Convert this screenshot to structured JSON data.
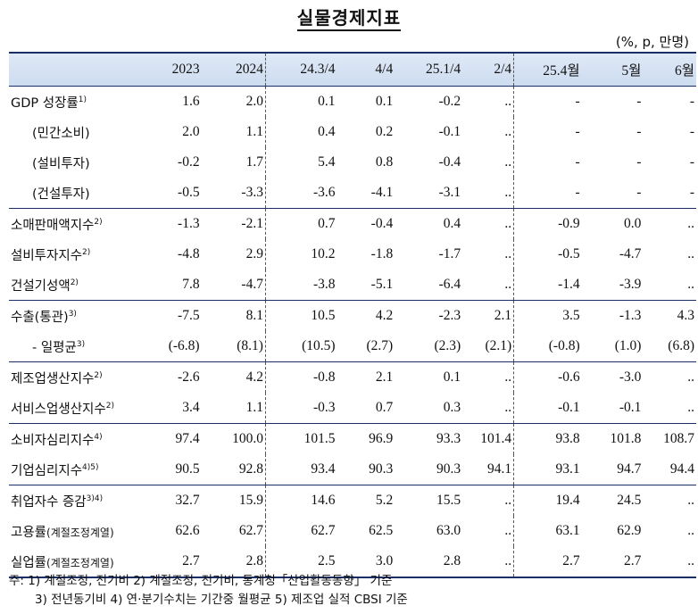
{
  "title": "실물경제지표",
  "unit": "(%, p, 만명)",
  "columns": [
    "2023",
    "2024",
    "24.3/4",
    "4/4",
    "25.1/4",
    "2/4",
    "25.4월",
    "5월",
    "6월"
  ],
  "rows": [
    {
      "label": "GDP 성장률",
      "sup": "1)",
      "values": [
        "1.6",
        "2.0",
        "0.1",
        "0.1",
        "-0.2",
        "..",
        "-",
        "-",
        "-"
      ]
    },
    {
      "label": "(민간소비)",
      "sup": "",
      "values": [
        "2.0",
        "1.1",
        "0.4",
        "0.2",
        "-0.1",
        "..",
        "-",
        "-",
        "-"
      ]
    },
    {
      "label": "(설비투자)",
      "sup": "",
      "values": [
        "-0.2",
        "1.7",
        "5.4",
        "0.8",
        "-0.4",
        "..",
        "-",
        "-",
        "-"
      ]
    },
    {
      "label": "(건설투자)",
      "sup": "",
      "values": [
        "-0.5",
        "-3.3",
        "-3.6",
        "-4.1",
        "-3.1",
        "..",
        "-",
        "-",
        "-"
      ]
    },
    {
      "label": "소매판매액지수",
      "sup": "2)",
      "values": [
        "-1.3",
        "-2.1",
        "0.7",
        "-0.4",
        "0.4",
        "..",
        "-0.9",
        "0.0",
        ".."
      ]
    },
    {
      "label": "설비투자지수",
      "sup": "2)",
      "values": [
        "-4.8",
        "2.9",
        "10.2",
        "-1.8",
        "-1.7",
        "..",
        "-0.5",
        "-4.7",
        ".."
      ]
    },
    {
      "label": "건설기성액",
      "sup": "2)",
      "values": [
        "7.8",
        "-4.7",
        "-3.8",
        "-5.1",
        "-6.4",
        "..",
        "-1.4",
        "-3.9",
        ".."
      ]
    },
    {
      "label": "수출(통관)",
      "sup": "3)",
      "values": [
        "-7.5",
        "8.1",
        "10.5",
        "4.2",
        "-2.3",
        "2.1",
        "3.5",
        "-1.3",
        "4.3"
      ]
    },
    {
      "label": "- 일평균",
      "sup": "3)",
      "values": [
        "(-6.8)",
        "(8.1)",
        "(10.5)",
        "(2.7)",
        "(2.3)",
        "(2.1)",
        "(-0.8)",
        "(1.0)",
        "(6.8)"
      ]
    },
    {
      "label": "제조업생산지수",
      "sup": "2)",
      "values": [
        "-2.6",
        "4.2",
        "-0.8",
        "2.1",
        "0.1",
        "..",
        "-0.6",
        "-3.0",
        ".."
      ]
    },
    {
      "label": "서비스업생산지수",
      "sup": "2)",
      "values": [
        "3.4",
        "1.1",
        "-0.3",
        "0.7",
        "0.3",
        "..",
        "-0.1",
        "-0.1",
        ".."
      ]
    },
    {
      "label": "소비자심리지수",
      "sup": "4)",
      "values": [
        "97.4",
        "100.0",
        "101.5",
        "96.9",
        "93.3",
        "101.4",
        "93.8",
        "101.8",
        "108.7"
      ]
    },
    {
      "label": "기업심리지수",
      "sup": "4)5)",
      "values": [
        "90.5",
        "92.8",
        "93.4",
        "90.3",
        "90.3",
        "94.1",
        "93.1",
        "94.7",
        "94.4"
      ]
    },
    {
      "label": "취업자수 증감",
      "sup": "3)4)",
      "values": [
        "32.7",
        "15.9",
        "14.6",
        "5.2",
        "15.5",
        "..",
        "19.4",
        "24.5",
        ".."
      ]
    },
    {
      "label": "고용률",
      "label_small": "(계절조정계열)",
      "sup": "",
      "values": [
        "62.6",
        "62.7",
        "62.7",
        "62.5",
        "63.0",
        "..",
        "63.1",
        "62.9",
        ".."
      ]
    },
    {
      "label": "실업률",
      "label_small": "(계절조정계열)",
      "sup": "",
      "values": [
        "2.7",
        "2.8",
        "2.5",
        "3.0",
        "2.8",
        "..",
        "2.7",
        "2.7",
        ".."
      ]
    }
  ],
  "notes": {
    "line1": "주: 1) 계절조정, 전기비  2) 계절조정, 전기비, 통계청「산업활동동향」 기준",
    "line2": "3) 전년동기비        4) 연·분기수치는 기간중 월평균    5) 제조업 실적 CBSI 기준"
  }
}
